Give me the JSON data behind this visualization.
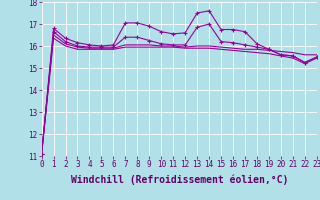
{
  "xlabel": "Windchill (Refroidissement éolien,°C)",
  "background_color": "#b2e0e8",
  "grid_color": "#ffffff",
  "line_color": "#990099",
  "x": [
    0,
    1,
    2,
    3,
    4,
    5,
    6,
    7,
    8,
    9,
    10,
    11,
    12,
    13,
    14,
    15,
    16,
    17,
    18,
    19,
    20,
    21,
    22,
    23
  ],
  "line1": [
    11.1,
    16.8,
    16.35,
    16.15,
    16.05,
    16.0,
    16.05,
    17.05,
    17.05,
    16.9,
    16.65,
    16.55,
    16.6,
    17.5,
    17.6,
    16.75,
    16.75,
    16.65,
    16.1,
    15.85,
    15.6,
    15.55,
    15.25,
    15.5
  ],
  "line2": [
    11.1,
    16.65,
    16.2,
    16.0,
    15.95,
    15.95,
    15.95,
    16.4,
    16.4,
    16.25,
    16.1,
    16.05,
    16.05,
    16.85,
    17.0,
    16.2,
    16.15,
    16.05,
    15.95,
    15.85,
    15.6,
    15.55,
    15.25,
    15.5
  ],
  "line3": [
    11.1,
    16.5,
    16.1,
    15.95,
    15.9,
    15.9,
    15.9,
    16.05,
    16.05,
    16.05,
    16.0,
    16.0,
    15.95,
    16.0,
    16.0,
    15.95,
    15.9,
    15.85,
    15.85,
    15.8,
    15.75,
    15.7,
    15.6,
    15.6
  ],
  "line4": [
    11.1,
    16.35,
    16.0,
    15.85,
    15.85,
    15.85,
    15.85,
    15.95,
    15.95,
    15.95,
    15.95,
    15.95,
    15.9,
    15.9,
    15.9,
    15.85,
    15.8,
    15.75,
    15.7,
    15.65,
    15.55,
    15.45,
    15.2,
    15.45
  ],
  "ylim": [
    11,
    18
  ],
  "xlim": [
    0,
    23
  ],
  "yticks": [
    11,
    12,
    13,
    14,
    15,
    16,
    17,
    18
  ],
  "xticks": [
    0,
    1,
    2,
    3,
    4,
    5,
    6,
    7,
    8,
    9,
    10,
    11,
    12,
    13,
    14,
    15,
    16,
    17,
    18,
    19,
    20,
    21,
    22,
    23
  ],
  "xtick_labels": [
    "0",
    "1",
    "2",
    "3",
    "4",
    "5",
    "6",
    "7",
    "8",
    "9",
    "10",
    "11",
    "12",
    "13",
    "14",
    "15",
    "16",
    "17",
    "18",
    "19",
    "20",
    "21",
    "22",
    "23"
  ],
  "tick_fontsize": 5.5,
  "xlabel_fontsize": 7.0
}
